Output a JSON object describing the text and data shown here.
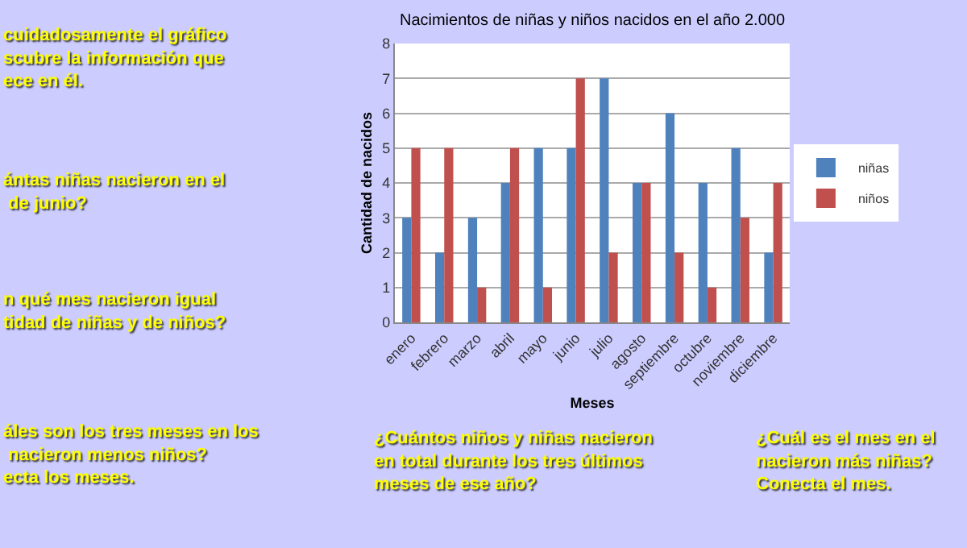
{
  "chart_data": {
    "type": "bar",
    "title": "Nacimientos de niñas y niños nacidos en el año 2.000",
    "xlabel": "Meses",
    "ylabel": "Cantidad de nacidos",
    "categories": [
      "enero",
      "febrero",
      "marzo",
      "abril",
      "mayo",
      "junio",
      "julio",
      "agosto",
      "septiembre",
      "octubre",
      "noviembre",
      "diciembre"
    ],
    "series": [
      {
        "name": "niñas",
        "color": "#4f81bd",
        "values": [
          3,
          2,
          3,
          4,
          5,
          5,
          7,
          4,
          6,
          4,
          5,
          2
        ]
      },
      {
        "name": "niños",
        "color": "#c0504d",
        "values": [
          5,
          5,
          1,
          5,
          1,
          7,
          2,
          4,
          2,
          1,
          3,
          4
        ]
      }
    ],
    "ylim": [
      0,
      8
    ],
    "yticks": [
      0,
      1,
      2,
      3,
      4,
      5,
      6,
      7,
      8
    ],
    "grid": "y",
    "legend": "right",
    "annotations": [
      "cuidadosamente el gráfico\nscubre la información que\nece en él.",
      "ántas niñas nacieron en el\n de junio?",
      "n qué mes nacieron igual\ntidad de niñas y de niños?",
      "áles son los tres meses en los\n nacieron menos niños?\necta los meses.",
      "¿Cuántos niños y niñas nacieron\nen total durante los tres últimos\nmeses de ese año?",
      "¿Cuál es el mes en el\nnacieron más niñas?\nConecta el mes."
    ]
  }
}
